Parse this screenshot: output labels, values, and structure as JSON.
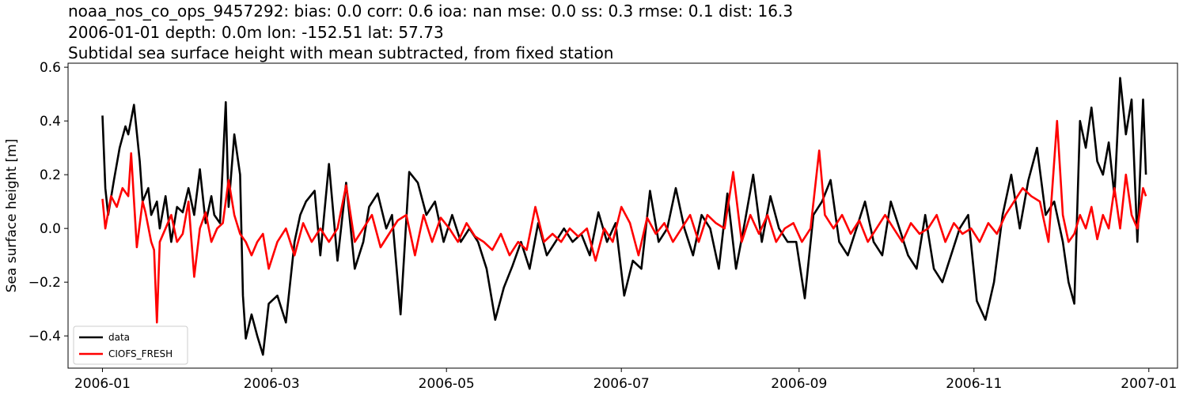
{
  "header": {
    "line1": "noaa_nos_co_ops_9457292: bias: 0.0  corr: 0.6  ioa: nan  mse: 0.0  ss: 0.3  rmse: 0.1  dist: 16.3",
    "line2": "2006-01-01 depth: 0.0m lon: -152.51 lat: 57.73",
    "line3": "Subtidal sea surface height with mean subtracted, from fixed station"
  },
  "chart_data": {
    "type": "line",
    "title": "noaa_nos_co_ops_9457292: bias: 0.0  corr: 0.6  ioa: nan  mse: 0.0  ss: 0.3  rmse: 0.1  dist: 16.3 / 2006-01-01 depth: 0.0m lon: -152.51 lat: 57.73 / Subtidal sea surface height with mean subtracted, from fixed station",
    "xlabel": "",
    "ylabel": "Sea surface height [m]",
    "xlim": [
      "2005-12-20",
      "2007-01-11"
    ],
    "ylim": [
      -0.52,
      0.615
    ],
    "xticks": [
      "2006-01",
      "2006-03",
      "2006-05",
      "2006-07",
      "2006-09",
      "2006-11",
      "2007-01"
    ],
    "xtick_dates": [
      "2006-01-01",
      "2006-03-01",
      "2006-05-01",
      "2006-07-01",
      "2006-09-01",
      "2006-11-01",
      "2007-01-01"
    ],
    "yticks": [
      -0.4,
      -0.2,
      0.0,
      0.2,
      0.4,
      0.6
    ],
    "ytick_labels": [
      "−0.4",
      "−0.2",
      "0.0",
      "0.2",
      "0.4",
      "0.6"
    ],
    "grid": false,
    "legend_position": "lower-left",
    "series": [
      {
        "name": "data",
        "color": "#000000",
        "x": [
          "2006-01-01",
          "2006-01-02",
          "2006-01-03",
          "2006-01-05",
          "2006-01-07",
          "2006-01-09",
          "2006-01-10",
          "2006-01-12",
          "2006-01-14",
          "2006-01-15",
          "2006-01-17",
          "2006-01-18",
          "2006-01-20",
          "2006-01-21",
          "2006-01-23",
          "2006-01-25",
          "2006-01-27",
          "2006-01-29",
          "2006-01-31",
          "2006-02-02",
          "2006-02-04",
          "2006-02-06",
          "2006-02-08",
          "2006-02-09",
          "2006-02-11",
          "2006-02-13",
          "2006-02-14",
          "2006-02-16",
          "2006-02-18",
          "2006-02-19",
          "2006-02-20",
          "2006-02-22",
          "2006-02-24",
          "2006-02-26",
          "2006-02-28",
          "2006-03-03",
          "2006-03-06",
          "2006-03-09",
          "2006-03-11",
          "2006-03-13",
          "2006-03-16",
          "2006-03-18",
          "2006-03-21",
          "2006-03-24",
          "2006-03-27",
          "2006-03-30",
          "2006-04-02",
          "2006-04-04",
          "2006-04-07",
          "2006-04-10",
          "2006-04-12",
          "2006-04-15",
          "2006-04-18",
          "2006-04-21",
          "2006-04-24",
          "2006-04-27",
          "2006-04-30",
          "2006-05-03",
          "2006-05-06",
          "2006-05-09",
          "2006-05-12",
          "2006-05-15",
          "2006-05-18",
          "2006-05-21",
          "2006-05-24",
          "2006-05-27",
          "2006-05-30",
          "2006-06-02",
          "2006-06-05",
          "2006-06-08",
          "2006-06-11",
          "2006-06-14",
          "2006-06-17",
          "2006-06-20",
          "2006-06-23",
          "2006-06-26",
          "2006-06-29",
          "2006-07-02",
          "2006-07-05",
          "2006-07-08",
          "2006-07-11",
          "2006-07-14",
          "2006-07-17",
          "2006-07-20",
          "2006-07-23",
          "2006-07-26",
          "2006-07-29",
          "2006-08-01",
          "2006-08-04",
          "2006-08-07",
          "2006-08-10",
          "2006-08-13",
          "2006-08-16",
          "2006-08-19",
          "2006-08-22",
          "2006-08-25",
          "2006-08-28",
          "2006-08-31",
          "2006-09-03",
          "2006-09-06",
          "2006-09-09",
          "2006-09-12",
          "2006-09-15",
          "2006-09-18",
          "2006-09-21",
          "2006-09-24",
          "2006-09-27",
          "2006-09-30",
          "2006-10-03",
          "2006-10-06",
          "2006-10-09",
          "2006-10-12",
          "2006-10-15",
          "2006-10-18",
          "2006-10-21",
          "2006-10-24",
          "2006-10-27",
          "2006-10-30",
          "2006-11-02",
          "2006-11-05",
          "2006-11-08",
          "2006-11-11",
          "2006-11-14",
          "2006-11-17",
          "2006-11-20",
          "2006-11-23",
          "2006-11-26",
          "2006-11-29",
          "2006-12-02",
          "2006-12-04",
          "2006-12-06",
          "2006-12-08",
          "2006-12-10",
          "2006-12-12",
          "2006-12-14",
          "2006-12-16",
          "2006-12-18",
          "2006-12-20",
          "2006-12-22",
          "2006-12-24",
          "2006-12-26",
          "2006-12-28",
          "2006-12-30",
          "2006-12-31"
        ],
        "y": [
          0.42,
          0.15,
          0.05,
          0.18,
          0.3,
          0.38,
          0.35,
          0.46,
          0.25,
          0.1,
          0.15,
          0.05,
          0.1,
          0.0,
          0.12,
          -0.05,
          0.08,
          0.06,
          0.15,
          0.05,
          0.22,
          0.02,
          0.12,
          0.05,
          0.02,
          0.47,
          0.08,
          0.35,
          0.2,
          -0.25,
          -0.41,
          -0.32,
          -0.4,
          -0.47,
          -0.28,
          -0.25,
          -0.35,
          -0.05,
          0.05,
          0.1,
          0.14,
          -0.1,
          0.24,
          -0.12,
          0.17,
          -0.15,
          -0.05,
          0.08,
          0.13,
          0.0,
          0.05,
          -0.32,
          0.21,
          0.17,
          0.05,
          0.1,
          -0.05,
          0.05,
          -0.05,
          0.0,
          -0.05,
          -0.15,
          -0.34,
          -0.22,
          -0.14,
          -0.05,
          -0.15,
          0.02,
          -0.1,
          -0.05,
          0.0,
          -0.05,
          -0.02,
          -0.1,
          0.06,
          -0.05,
          0.02,
          -0.25,
          -0.12,
          -0.15,
          0.14,
          -0.05,
          0.0,
          0.15,
          0.0,
          -0.1,
          0.05,
          0.0,
          -0.15,
          0.13,
          -0.15,
          0.02,
          0.2,
          -0.05,
          0.12,
          0.0,
          -0.05,
          -0.05,
          -0.26,
          0.05,
          0.1,
          0.18,
          -0.05,
          -0.1,
          0.0,
          0.1,
          -0.05,
          -0.1,
          0.1,
          0.0,
          -0.1,
          -0.15,
          0.05,
          -0.15,
          -0.2,
          -0.1,
          0.0,
          0.05,
          -0.27,
          -0.34,
          -0.2,
          0.05,
          0.2,
          0.0,
          0.18,
          0.3,
          0.05,
          0.1,
          -0.05,
          -0.2,
          -0.28,
          0.4,
          0.3,
          0.45,
          0.25,
          0.2,
          0.32,
          0.12,
          0.56,
          0.35,
          0.48,
          -0.05,
          0.48,
          0.2
        ]
      },
      {
        "name": "CIOFS_FRESH",
        "color": "#ff0000",
        "x": [
          "2006-01-01",
          "2006-01-02",
          "2006-01-04",
          "2006-01-06",
          "2006-01-08",
          "2006-01-10",
          "2006-01-11",
          "2006-01-13",
          "2006-01-15",
          "2006-01-16",
          "2006-01-18",
          "2006-01-19",
          "2006-01-20",
          "2006-01-21",
          "2006-01-23",
          "2006-01-25",
          "2006-01-27",
          "2006-01-29",
          "2006-01-31",
          "2006-02-02",
          "2006-02-04",
          "2006-02-06",
          "2006-02-08",
          "2006-02-10",
          "2006-02-12",
          "2006-02-14",
          "2006-02-16",
          "2006-02-18",
          "2006-02-20",
          "2006-02-22",
          "2006-02-24",
          "2006-02-26",
          "2006-02-28",
          "2006-03-03",
          "2006-03-06",
          "2006-03-09",
          "2006-03-12",
          "2006-03-15",
          "2006-03-18",
          "2006-03-21",
          "2006-03-24",
          "2006-03-27",
          "2006-03-30",
          "2006-04-02",
          "2006-04-05",
          "2006-04-08",
          "2006-04-11",
          "2006-04-14",
          "2006-04-17",
          "2006-04-20",
          "2006-04-23",
          "2006-04-26",
          "2006-04-29",
          "2006-05-02",
          "2006-05-05",
          "2006-05-08",
          "2006-05-11",
          "2006-05-14",
          "2006-05-17",
          "2006-05-20",
          "2006-05-23",
          "2006-05-26",
          "2006-05-29",
          "2006-06-01",
          "2006-06-04",
          "2006-06-07",
          "2006-06-10",
          "2006-06-13",
          "2006-06-16",
          "2006-06-19",
          "2006-06-22",
          "2006-06-25",
          "2006-06-28",
          "2006-07-01",
          "2006-07-04",
          "2006-07-07",
          "2006-07-10",
          "2006-07-13",
          "2006-07-16",
          "2006-07-19",
          "2006-07-22",
          "2006-07-25",
          "2006-07-28",
          "2006-07-31",
          "2006-08-03",
          "2006-08-06",
          "2006-08-09",
          "2006-08-12",
          "2006-08-15",
          "2006-08-18",
          "2006-08-21",
          "2006-08-24",
          "2006-08-27",
          "2006-08-30",
          "2006-09-02",
          "2006-09-05",
          "2006-09-08",
          "2006-09-10",
          "2006-09-13",
          "2006-09-16",
          "2006-09-19",
          "2006-09-22",
          "2006-09-25",
          "2006-09-28",
          "2006-10-01",
          "2006-10-04",
          "2006-10-07",
          "2006-10-10",
          "2006-10-13",
          "2006-10-16",
          "2006-10-19",
          "2006-10-22",
          "2006-10-25",
          "2006-10-28",
          "2006-10-31",
          "2006-11-03",
          "2006-11-06",
          "2006-11-09",
          "2006-11-12",
          "2006-11-15",
          "2006-11-18",
          "2006-11-21",
          "2006-11-24",
          "2006-11-27",
          "2006-11-30",
          "2006-12-02",
          "2006-12-04",
          "2006-12-06",
          "2006-12-08",
          "2006-12-10",
          "2006-12-12",
          "2006-12-14",
          "2006-12-16",
          "2006-12-18",
          "2006-12-20",
          "2006-12-22",
          "2006-12-24",
          "2006-12-26",
          "2006-12-28",
          "2006-12-30",
          "2006-12-31"
        ],
        "y": [
          0.11,
          0.0,
          0.12,
          0.08,
          0.15,
          0.12,
          0.28,
          -0.07,
          0.1,
          0.06,
          -0.05,
          -0.08,
          -0.35,
          -0.05,
          0.0,
          0.05,
          -0.05,
          -0.02,
          0.1,
          -0.18,
          0.0,
          0.06,
          -0.05,
          0.0,
          0.02,
          0.18,
          0.05,
          -0.02,
          -0.05,
          -0.1,
          -0.05,
          -0.02,
          -0.15,
          -0.05,
          0.0,
          -0.1,
          0.02,
          -0.05,
          0.0,
          -0.05,
          0.0,
          0.16,
          -0.05,
          0.0,
          0.05,
          -0.07,
          -0.02,
          0.03,
          0.05,
          -0.1,
          0.05,
          -0.05,
          0.04,
          0.0,
          -0.05,
          0.02,
          -0.03,
          -0.05,
          -0.08,
          -0.02,
          -0.1,
          -0.05,
          -0.08,
          0.08,
          -0.05,
          -0.02,
          -0.05,
          0.0,
          -0.03,
          0.0,
          -0.12,
          0.0,
          -0.05,
          0.08,
          0.02,
          -0.1,
          0.04,
          -0.02,
          0.02,
          -0.05,
          0.0,
          0.05,
          -0.05,
          0.05,
          0.02,
          0.0,
          0.21,
          -0.05,
          0.05,
          -0.02,
          0.05,
          -0.05,
          0.0,
          0.02,
          -0.05,
          0.0,
          0.29,
          0.05,
          0.0,
          0.05,
          -0.02,
          0.03,
          -0.05,
          0.0,
          0.05,
          0.0,
          -0.05,
          0.02,
          -0.02,
          0.0,
          0.05,
          -0.05,
          0.02,
          -0.02,
          0.0,
          -0.05,
          0.02,
          -0.02,
          0.05,
          0.1,
          0.15,
          0.12,
          0.1,
          -0.05,
          0.4,
          0.05,
          -0.05,
          -0.02,
          0.05,
          0.0,
          0.08,
          -0.04,
          0.05,
          0.0,
          0.15,
          0.0,
          0.2,
          0.05,
          0.0,
          0.15,
          0.12
        ]
      }
    ]
  }
}
